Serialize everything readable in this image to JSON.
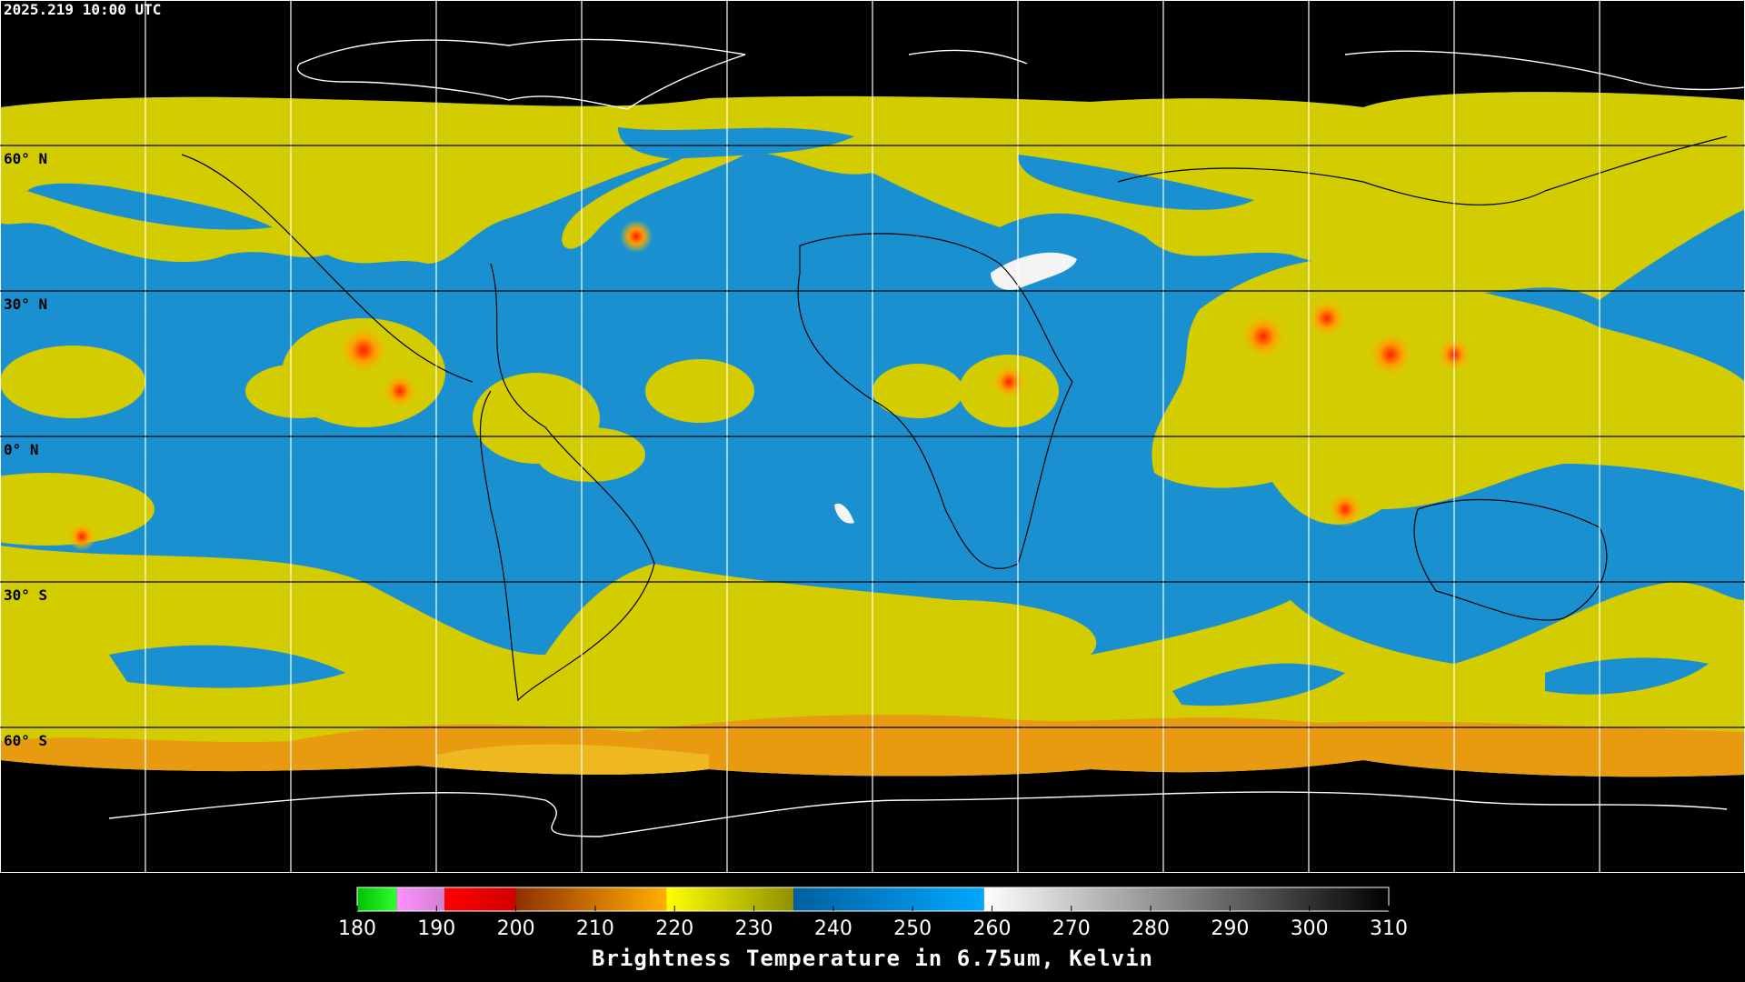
{
  "header": {
    "title": "2025.219 10:00 UTC"
  },
  "map": {
    "lat_labels": [
      "60° N",
      "30° N",
      "0° N",
      "30° S",
      "60° S"
    ]
  },
  "colorbar": {
    "range": [
      180,
      310
    ],
    "ticks": [
      180,
      190,
      200,
      210,
      220,
      230,
      240,
      250,
      260,
      270,
      280,
      290,
      300,
      310
    ],
    "label": "Brightness Temperature in 6.75um, Kelvin",
    "segments": [
      {
        "from": 180,
        "to": 185,
        "colors": [
          "#00c000",
          "#30ff30"
        ]
      },
      {
        "from": 185,
        "to": 191,
        "colors": [
          "#ff90ff",
          "#d080d0"
        ]
      },
      {
        "from": 191,
        "to": 200,
        "colors": [
          "#ff0000",
          "#d00000"
        ]
      },
      {
        "from": 200,
        "to": 219,
        "colors": [
          "#903000",
          "#ffb000"
        ]
      },
      {
        "from": 219,
        "to": 235,
        "colors": [
          "#ffff00",
          "#909000"
        ]
      },
      {
        "from": 235,
        "to": 259,
        "colors": [
          "#0060a0",
          "#00a8ff"
        ]
      },
      {
        "from": 259,
        "to": 310,
        "colors": [
          "#ffffff",
          "#000000"
        ]
      }
    ]
  }
}
